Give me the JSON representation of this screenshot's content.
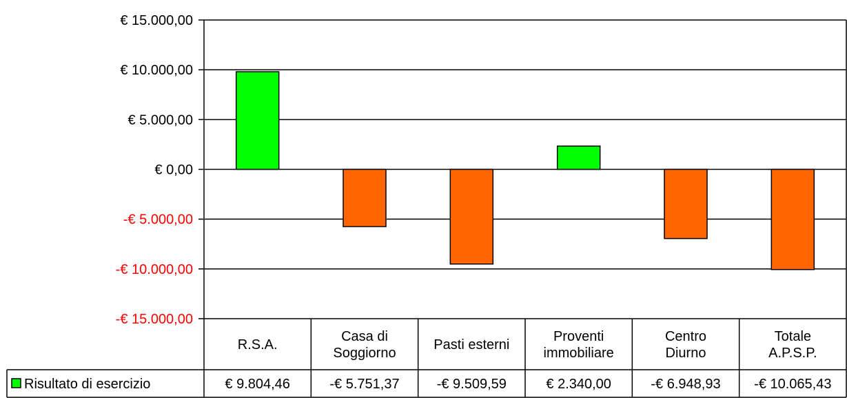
{
  "chart_data": {
    "type": "bar",
    "categories": [
      [
        "R.S.A."
      ],
      [
        "Casa di",
        "Soggiorno"
      ],
      [
        "Pasti esterni"
      ],
      [
        "Proventi",
        "immobiliare"
      ],
      [
        "Centro",
        "Diurno"
      ],
      [
        "Totale",
        "A.P.S.P."
      ]
    ],
    "series": [
      {
        "name": "Risultato di esercizio",
        "values": [
          9804.46,
          -5751.37,
          -9509.59,
          2340.0,
          -6948.93,
          -10065.43
        ],
        "value_labels": [
          "€ 9.804,46",
          "-€ 5.751,37",
          "-€ 9.509,59",
          "€ 2.340,00",
          "-€ 6.948,93",
          "-€ 10.065,43"
        ]
      }
    ],
    "ylim": [
      -15000,
      15000
    ],
    "yticks": [
      15000,
      10000,
      5000,
      0,
      -5000,
      -10000,
      -15000
    ],
    "ytick_labels": [
      "€ 15.000,00",
      "€ 10.000,00",
      "€ 5.000,00",
      "€ 0,00",
      "-€ 5.000,00",
      "-€ 10.000,00",
      "-€ 15.000,00"
    ],
    "grid": true,
    "legend": "data-table-left",
    "colors": {
      "positive": "#00ff00",
      "negative": "#ff6600",
      "negative_tick": "#ff0000",
      "positive_tick": "#000000",
      "axis": "#000000"
    }
  }
}
